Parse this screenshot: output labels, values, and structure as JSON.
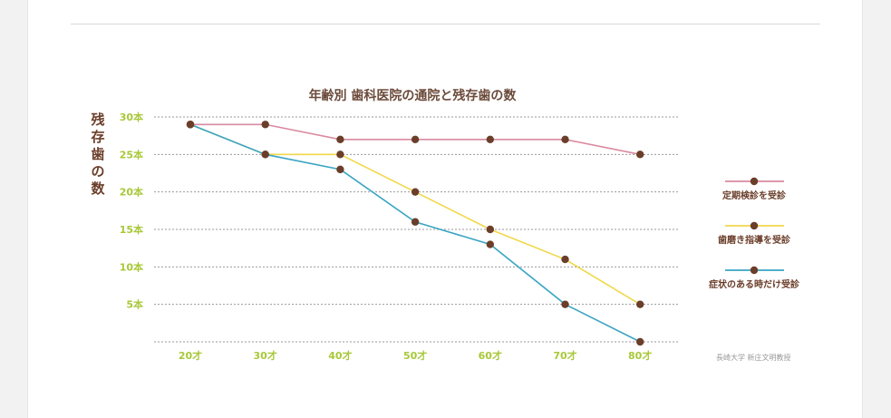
{
  "chart_data": {
    "type": "line",
    "title": "年齢別 歯科医院の通院と残存歯の数",
    "ylabel": "残存歯の数",
    "x": [
      "20才",
      "30才",
      "40才",
      "50才",
      "60才",
      "70才",
      "80才"
    ],
    "y_ticks": [
      "30本",
      "25本",
      "20本",
      "15本",
      "10本",
      "5本"
    ],
    "ylim": [
      0,
      30
    ],
    "grid": true,
    "legend_position": "right",
    "series": [
      {
        "name": "定期検診を受診",
        "color": "#d98aa0",
        "values": [
          29,
          29,
          27,
          27,
          27,
          27,
          25
        ]
      },
      {
        "name": "歯磨き指導を受診",
        "color": "#f0d84a",
        "values": [
          29,
          25,
          25,
          20,
          15,
          11,
          5
        ]
      },
      {
        "name": "症状のある時だけ受診",
        "color": "#3aa5c3",
        "values": [
          29,
          25,
          23,
          16,
          13,
          5,
          0
        ]
      }
    ],
    "marker_color": "#6b3e2a",
    "axis_label_color": "#a8c83a",
    "source": "長崎大学 新庄文明教授"
  }
}
